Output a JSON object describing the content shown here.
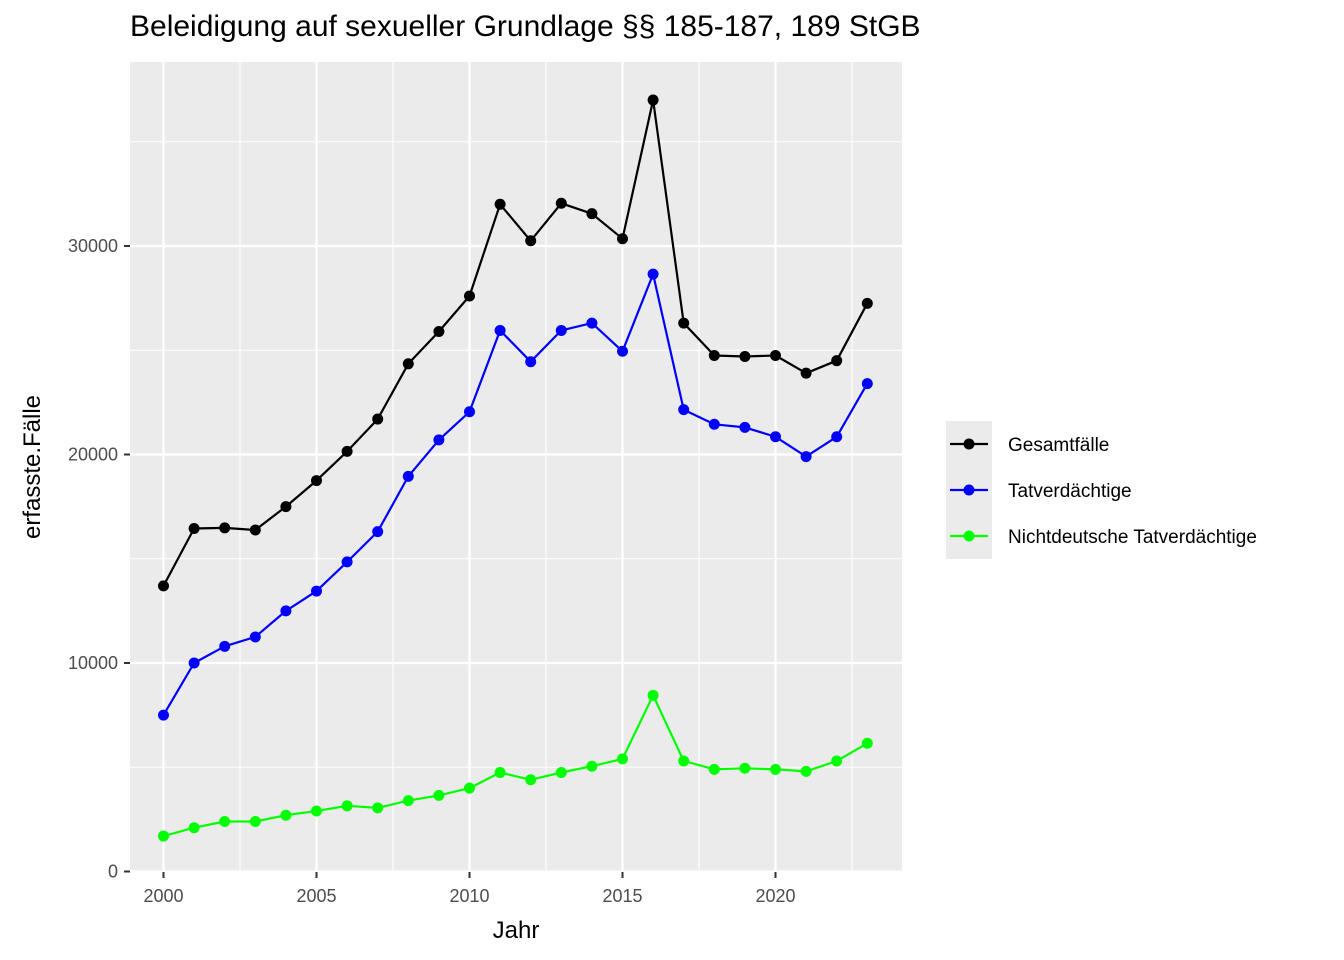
{
  "chart_data": {
    "type": "line",
    "title": "Beleidigung auf sexueller Grundlage §§ 185-187, 189 StGB",
    "xlabel": "Jahr",
    "ylabel": "erfasste.Fälle",
    "xlim": [
      1999,
      2024
    ],
    "ylim": [
      0,
      38000
    ],
    "x_ticks": [
      2000,
      2005,
      2010,
      2015,
      2020
    ],
    "y_ticks": [
      0,
      10000,
      20000,
      30000
    ],
    "grid": true,
    "legend_position": "right",
    "x": [
      2000,
      2001,
      2002,
      2003,
      2004,
      2005,
      2006,
      2007,
      2008,
      2009,
      2010,
      2011,
      2012,
      2013,
      2014,
      2015,
      2016,
      2017,
      2018,
      2019,
      2020,
      2021,
      2022,
      2023
    ],
    "series": [
      {
        "name": "Gesamtfälle",
        "color": "#000000",
        "values": [
          13700,
          16450,
          16480,
          16380,
          17500,
          18750,
          20150,
          21700,
          24350,
          25900,
          27600,
          32000,
          30250,
          32050,
          31550,
          30350,
          37000,
          26300,
          24750,
          24700,
          24750,
          23900,
          24500,
          27250
        ]
      },
      {
        "name": "Tatverdächtige",
        "color": "#0000ff",
        "values": [
          7500,
          10000,
          10800,
          11250,
          12500,
          13450,
          14850,
          16300,
          18950,
          20700,
          22050,
          25950,
          24450,
          25950,
          26300,
          24950,
          28650,
          22150,
          21450,
          21300,
          20850,
          19900,
          20850,
          23400
        ]
      },
      {
        "name": "Nichtdeutsche Tatverdächtige",
        "color": "#00ff00",
        "values": [
          1700,
          2100,
          2400,
          2400,
          2700,
          2900,
          3150,
          3050,
          3400,
          3650,
          4000,
          4750,
          4400,
          4750,
          5050,
          5400,
          8450,
          5300,
          4900,
          4950,
          4900,
          4800,
          5300,
          6150
        ]
      }
    ]
  }
}
